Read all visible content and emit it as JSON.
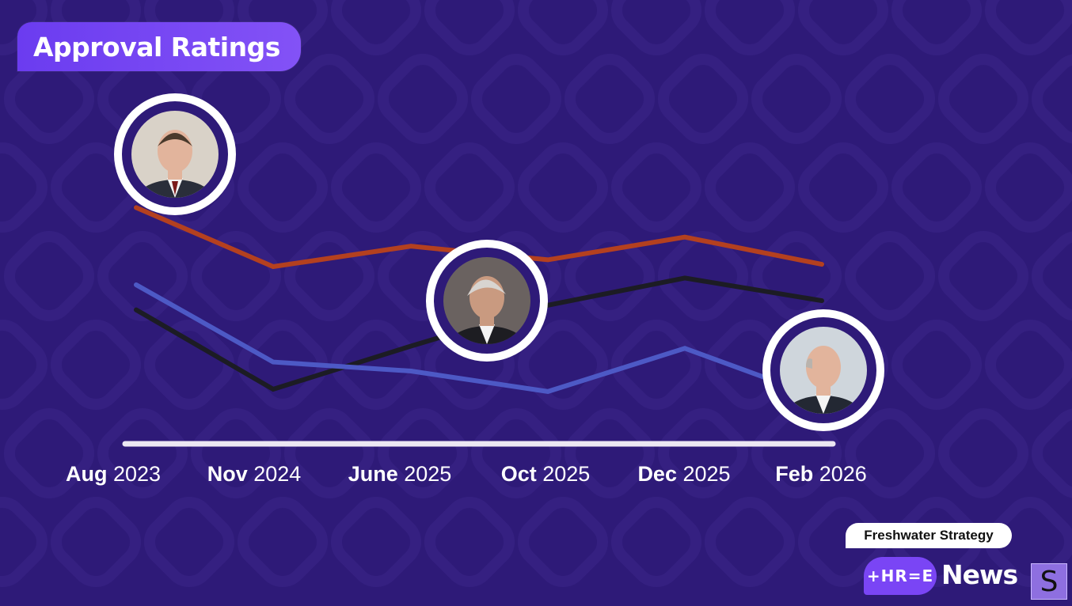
{
  "header": {
    "title": "Approval Ratings"
  },
  "chart_data": {
    "type": "line",
    "categories": [
      {
        "bold": "Aug",
        "rest": "2023"
      },
      {
        "bold": "Nov",
        "rest": "2024"
      },
      {
        "bold": "June",
        "rest": "2025"
      },
      {
        "bold": "Oct",
        "rest": "2025"
      },
      {
        "bold": "Dec",
        "rest": "2025"
      },
      {
        "bold": "Feb",
        "rest": "2026"
      }
    ],
    "series": [
      {
        "color": "#b4401f",
        "values": [
          80,
          54,
          63,
          57,
          67,
          55
        ],
        "photo": "politician-photo-1"
      },
      {
        "color": "#1c1c24",
        "values": [
          35,
          0,
          19,
          37,
          49,
          39
        ],
        "photo": "politician-photo-2"
      },
      {
        "color": "#4d59c5",
        "values": [
          46,
          12,
          8,
          -1,
          18,
          -4
        ],
        "photo": "politician-photo-3"
      }
    ],
    "xlabel": "",
    "ylabel": "",
    "grid": false,
    "legend": "none"
  },
  "footer": {
    "source": "Freshwater Strategy",
    "brand_logo": "+HR=E",
    "brand_word": "News",
    "partner_logo": "S"
  }
}
